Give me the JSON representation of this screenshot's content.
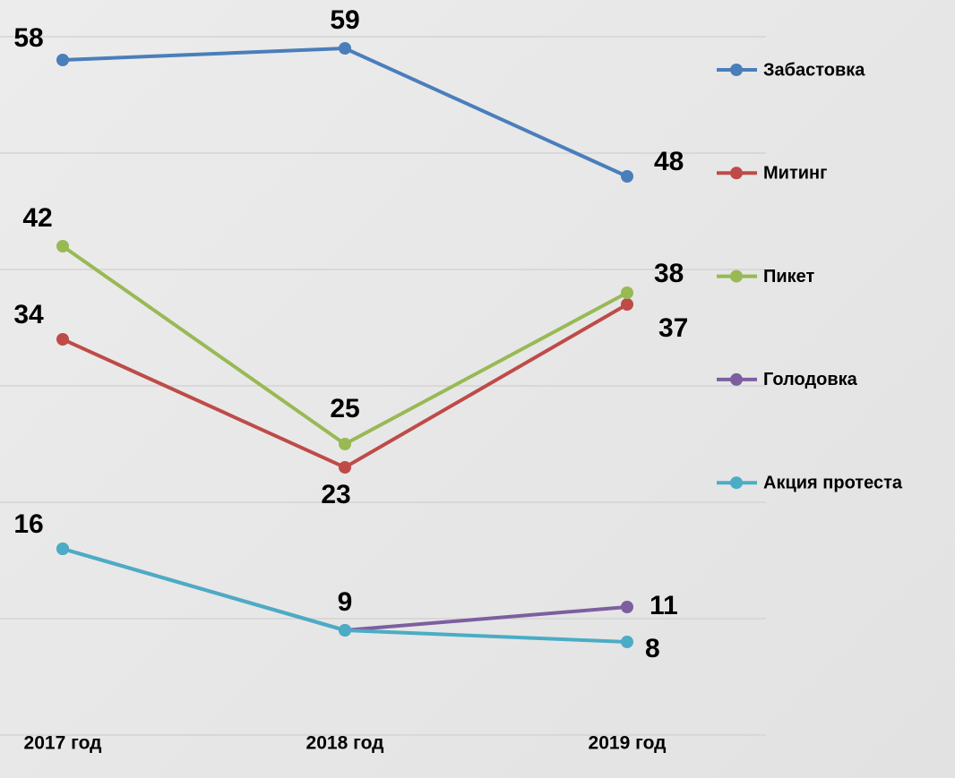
{
  "chart_data": {
    "type": "line",
    "categories": [
      "2017 год",
      "2018 год",
      "2019 год"
    ],
    "series": [
      {
        "name": "Забастовка",
        "color": "#4a7ebb",
        "values": [
          58,
          59,
          48
        ]
      },
      {
        "name": "Митинг",
        "color": "#be4b48",
        "values": [
          34,
          23,
          37
        ]
      },
      {
        "name": "Пикет",
        "color": "#98b954",
        "values": [
          42,
          25,
          38
        ]
      },
      {
        "name": "Голодовка",
        "color": "#7d5fa0",
        "values": [
          16,
          9,
          11
        ]
      },
      {
        "name": "Акция протеста",
        "color": "#4bacc6",
        "values": [
          16,
          9,
          8
        ]
      }
    ],
    "ylim": [
      0,
      60
    ],
    "yticks": [
      0,
      10,
      20,
      30,
      40,
      50,
      60
    ],
    "grid": true,
    "legend": "right"
  }
}
